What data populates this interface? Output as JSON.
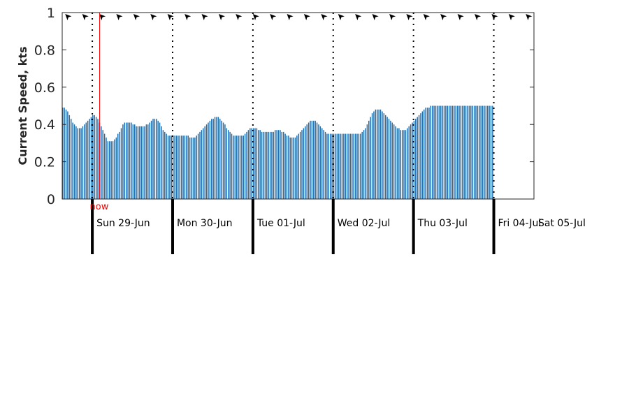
{
  "chart_data": {
    "type": "bar",
    "ylabel": "Current Speed, kts",
    "ylim": [
      0,
      1
    ],
    "yticks": [
      "0",
      "0.2",
      "0.4",
      "0.6",
      "0.8",
      "1"
    ],
    "ytick_values": [
      0,
      0.2,
      0.4,
      0.6,
      0.8,
      1
    ],
    "bar_color": "#1f6fb0",
    "now_color": "#ff0000",
    "now_label": "now",
    "now_index": 6.5,
    "samples_per_day": 48,
    "day_start_indices": [
      0,
      48,
      96,
      144,
      192,
      240
    ],
    "day_labels": [
      "Sun 29-Jun",
      "Mon 30-Jun",
      "Tue 01-Jul",
      "Wed 02-Jul",
      "Thu 03-Jul",
      "Fri 04-Jul",
      "Sat 05-Jul"
    ],
    "lead_in_samples": 18,
    "total_samples": 282,
    "direction_arrow_glyph": "➤",
    "direction_arrow_rotation_deg": 225,
    "direction_arrow_count": 28,
    "values": [
      0.49,
      0.49,
      0.48,
      0.47,
      0.45,
      0.43,
      0.41,
      0.4,
      0.39,
      0.38,
      0.38,
      0.38,
      0.39,
      0.4,
      0.41,
      0.42,
      0.43,
      0.44,
      0.45,
      0.45,
      0.44,
      0.43,
      0.41,
      0.39,
      0.37,
      0.35,
      0.33,
      0.31,
      0.31,
      0.31,
      0.31,
      0.32,
      0.33,
      0.35,
      0.36,
      0.38,
      0.4,
      0.41,
      0.41,
      0.41,
      0.41,
      0.41,
      0.4,
      0.4,
      0.39,
      0.39,
      0.39,
      0.39,
      0.39,
      0.39,
      0.4,
      0.4,
      0.41,
      0.42,
      0.43,
      0.43,
      0.43,
      0.42,
      0.41,
      0.39,
      0.37,
      0.36,
      0.35,
      0.34,
      0.34,
      0.34,
      0.34,
      0.34,
      0.34,
      0.34,
      0.34,
      0.34,
      0.34,
      0.34,
      0.34,
      0.34,
      0.33,
      0.33,
      0.33,
      0.33,
      0.34,
      0.35,
      0.36,
      0.37,
      0.38,
      0.39,
      0.4,
      0.41,
      0.42,
      0.43,
      0.43,
      0.44,
      0.44,
      0.44,
      0.43,
      0.42,
      0.41,
      0.4,
      0.38,
      0.37,
      0.36,
      0.35,
      0.34,
      0.34,
      0.34,
      0.34,
      0.34,
      0.34,
      0.34,
      0.35,
      0.36,
      0.37,
      0.38,
      0.38,
      0.38,
      0.38,
      0.38,
      0.37,
      0.37,
      0.36,
      0.36,
      0.36,
      0.36,
      0.36,
      0.36,
      0.36,
      0.36,
      0.37,
      0.37,
      0.37,
      0.37,
      0.36,
      0.36,
      0.35,
      0.34,
      0.34,
      0.33,
      0.33,
      0.33,
      0.33,
      0.34,
      0.35,
      0.36,
      0.37,
      0.38,
      0.39,
      0.4,
      0.41,
      0.42,
      0.42,
      0.42,
      0.42,
      0.41,
      0.4,
      0.39,
      0.38,
      0.37,
      0.36,
      0.35,
      0.35,
      0.35,
      0.35,
      0.35,
      0.35,
      0.35,
      0.35,
      0.35,
      0.35,
      0.35,
      0.35,
      0.35,
      0.35,
      0.35,
      0.35,
      0.35,
      0.35,
      0.35,
      0.35,
      0.35,
      0.36,
      0.37,
      0.38,
      0.4,
      0.42,
      0.44,
      0.46,
      0.47,
      0.48,
      0.48,
      0.48,
      0.48,
      0.47,
      0.46,
      0.45,
      0.44,
      0.43,
      0.42,
      0.41,
      0.4,
      0.39,
      0.38,
      0.38,
      0.37,
      0.37,
      0.37,
      0.37,
      0.38,
      0.39,
      0.4,
      0.41,
      0.42,
      0.43,
      0.44,
      0.45,
      0.46,
      0.47,
      0.48,
      0.49,
      0.49,
      0.49,
      0.5,
      0.5,
      0.5,
      0.5,
      0.5,
      0.5,
      0.5,
      0.5,
      0.5,
      0.5,
      0.5,
      0.5,
      0.5,
      0.5,
      0.5,
      0.5,
      0.5,
      0.5,
      0.5,
      0.5,
      0.5,
      0.5,
      0.5,
      0.5,
      0.5,
      0.5,
      0.5,
      0.5,
      0.5,
      0.5,
      0.5,
      0.5,
      0.5,
      0.5,
      0.5,
      0.5,
      0.5,
      0.5
    ]
  }
}
